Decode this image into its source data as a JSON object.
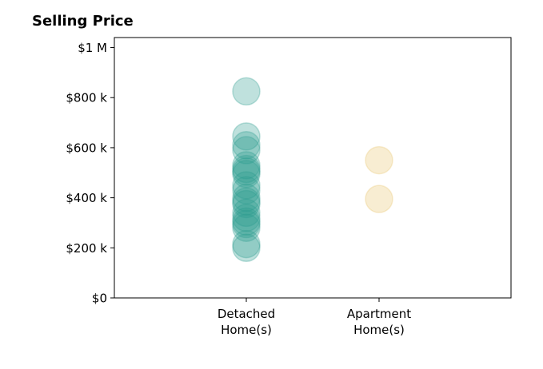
{
  "chart_data": {
    "type": "scatter",
    "title": "Selling Price",
    "xlabel": "",
    "ylabel": "",
    "categories": [
      {
        "line1": "Detached",
        "line2": "Home(s)"
      },
      {
        "line1": "Apartment",
        "line2": "Home(s)"
      }
    ],
    "ylim": [
      0,
      1040000
    ],
    "yticks": [
      {
        "value": 0,
        "label": "$0"
      },
      {
        "value": 200000,
        "label": "$200 k"
      },
      {
        "value": 400000,
        "label": "$400 k"
      },
      {
        "value": 600000,
        "label": "$600 k"
      },
      {
        "value": 800000,
        "label": "$800 k"
      },
      {
        "value": 1000000,
        "label": "$1 M"
      }
    ],
    "grid": false,
    "series": [
      {
        "category": 0,
        "color": "#2a9d8f",
        "values": [
          825000,
          645000,
          610000,
          590000,
          530000,
          515000,
          505000,
          495000,
          450000,
          430000,
          400000,
          385000,
          375000,
          340000,
          320000,
          305000,
          295000,
          280000,
          215000,
          200000
        ]
      },
      {
        "category": 1,
        "color": "#e9c46a",
        "values": [
          550000,
          395000
        ]
      }
    ]
  }
}
